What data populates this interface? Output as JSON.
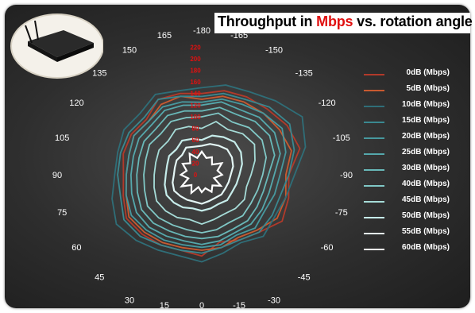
{
  "title": {
    "prefix": "Throughput in ",
    "accent": "Mbps",
    "suffix": " vs. rotation angle"
  },
  "colors": {
    "accent": "#e01010",
    "background": "#333333"
  },
  "chart_data": {
    "type": "radar",
    "angle_labels": [
      "-180",
      "-165",
      "-150",
      "-135",
      "-120",
      "-105",
      "-90",
      "-75",
      "-60",
      "-45",
      "-30",
      "-15",
      "0",
      "15",
      "30",
      "45",
      "60",
      "75",
      "90",
      "105",
      "120",
      "135",
      "150",
      "165"
    ],
    "radial_ticks": [
      "0",
      "20",
      "40",
      "60",
      "80",
      "100",
      "120",
      "140",
      "160",
      "180",
      "200",
      "220"
    ],
    "rlim": [
      0,
      230
    ],
    "legend_placement": "right",
    "series": [
      {
        "name": "0dB (Mbps)",
        "color": "#b23a2a",
        "values": [
          140,
          150,
          155,
          160,
          170,
          175,
          150,
          155,
          160,
          140,
          130,
          120,
          140,
          135,
          140,
          145,
          150,
          140,
          135,
          140,
          140,
          135,
          150,
          145
        ]
      },
      {
        "name": "5dB (Mbps)",
        "color": "#c85a30",
        "values": [
          130,
          140,
          145,
          150,
          155,
          160,
          145,
          150,
          150,
          135,
          125,
          130,
          130,
          130,
          135,
          140,
          145,
          135,
          130,
          130,
          135,
          130,
          140,
          140
        ]
      },
      {
        "name": "10dB (Mbps)",
        "color": "#2f6e78",
        "values": [
          150,
          160,
          165,
          180,
          200,
          185,
          160,
          150,
          145,
          150,
          135,
          140,
          150,
          145,
          150,
          160,
          170,
          160,
          150,
          150,
          155,
          150,
          160,
          150
        ]
      },
      {
        "name": "15dB (Mbps)",
        "color": "#3a8890",
        "values": [
          135,
          145,
          150,
          165,
          175,
          165,
          150,
          140,
          140,
          140,
          130,
          130,
          135,
          135,
          140,
          150,
          155,
          145,
          145,
          145,
          145,
          140,
          150,
          140
        ]
      },
      {
        "name": "20dB (Mbps)",
        "color": "#47989e",
        "values": [
          125,
          135,
          140,
          150,
          160,
          150,
          135,
          130,
          125,
          130,
          120,
          125,
          125,
          125,
          130,
          135,
          140,
          135,
          130,
          130,
          135,
          130,
          135,
          130
        ]
      },
      {
        "name": "25dB (Mbps)",
        "color": "#55a8ac",
        "values": [
          120,
          130,
          130,
          140,
          145,
          140,
          125,
          120,
          120,
          120,
          115,
          118,
          120,
          118,
          122,
          128,
          130,
          125,
          122,
          122,
          125,
          122,
          128,
          124
        ]
      },
      {
        "name": "30dB (Mbps)",
        "color": "#68b8b8",
        "values": [
          110,
          120,
          120,
          130,
          135,
          130,
          115,
          110,
          110,
          112,
          108,
          110,
          110,
          110,
          112,
          118,
          120,
          115,
          112,
          112,
          115,
          112,
          118,
          114
        ]
      },
      {
        "name": "40dB (Mbps)",
        "color": "#80c8c6",
        "values": [
          100,
          110,
          105,
          115,
          120,
          115,
          105,
          100,
          98,
          100,
          95,
          98,
          100,
          98,
          100,
          105,
          108,
          102,
          100,
          100,
          104,
          100,
          106,
          102
        ]
      },
      {
        "name": "45dB (Mbps)",
        "color": "#a6dcd8",
        "values": [
          80,
          95,
          90,
          100,
          105,
          95,
          85,
          80,
          85,
          82,
          78,
          80,
          85,
          80,
          85,
          88,
          90,
          85,
          82,
          82,
          85,
          82,
          90,
          86
        ]
      },
      {
        "name": "50dB (Mbps)",
        "color": "#c6ecea",
        "values": [
          60,
          70,
          75,
          80,
          78,
          72,
          65,
          62,
          60,
          62,
          58,
          60,
          62,
          60,
          65,
          68,
          70,
          66,
          62,
          62,
          65,
          62,
          68,
          64
        ]
      },
      {
        "name": "55dB (Mbps)",
        "color": "#e4f6f5",
        "values": [
          50,
          55,
          58,
          62,
          60,
          56,
          50,
          48,
          47,
          48,
          46,
          47,
          50,
          48,
          50,
          52,
          55,
          52,
          48,
          48,
          50,
          48,
          54,
          50
        ]
      },
      {
        "name": "60dB (Mbps)",
        "color": "#ffffff",
        "values": [
          40,
          30,
          35,
          25,
          40,
          28,
          35,
          22,
          38,
          26,
          34,
          24,
          30,
          22,
          36,
          25,
          40,
          24,
          36,
          27,
          38,
          28,
          42,
          30
        ]
      }
    ]
  }
}
